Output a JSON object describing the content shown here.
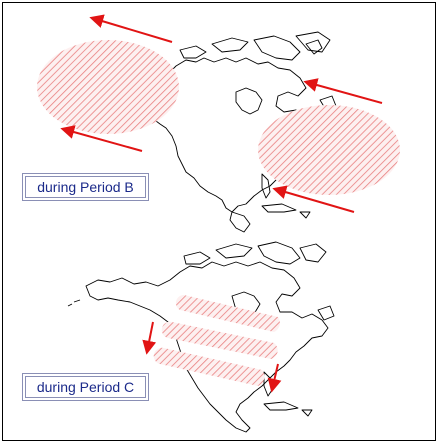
{
  "panels": [
    {
      "label": "during Period B"
    },
    {
      "label": "during Period C"
    }
  ],
  "colors": {
    "arrow": "#e11414",
    "hatch": "#e98080",
    "hatch_fill": "#fbe3e3",
    "coastline": "#000000",
    "label_text": "#1b2a8a",
    "label_border": "#8a8fb5"
  }
}
